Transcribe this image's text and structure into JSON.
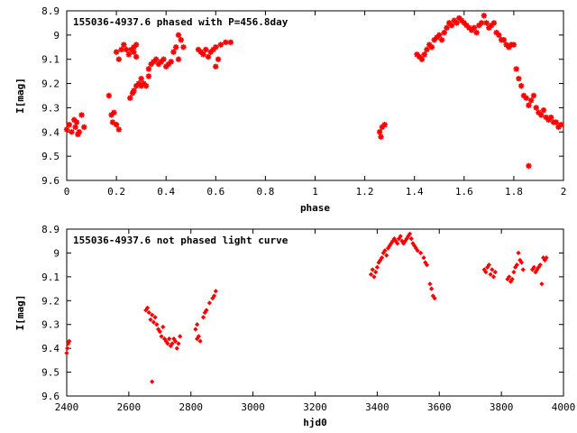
{
  "chart_data": [
    {
      "type": "scatter",
      "title": "155036-4937.6 phased with P=456.8day",
      "xlabel": "phase",
      "ylabel": "I[mag]",
      "xlim": [
        0,
        2
      ],
      "ylim": [
        8.9,
        9.6
      ],
      "y_inverted": true,
      "grid": false,
      "marker": "star",
      "color": "#ff0000",
      "x_ticks": [
        "0",
        "0.2",
        "0.4",
        "0.6",
        "0.8",
        "1",
        "1.2",
        "1.4",
        "1.6",
        "1.8",
        "2"
      ],
      "y_ticks": [
        "8.9",
        "9",
        "9.1",
        "9.2",
        "9.3",
        "9.4",
        "9.5",
        "9.6"
      ],
      "points": [
        [
          0.0,
          9.39
        ],
        [
          0.01,
          9.37
        ],
        [
          0.02,
          9.4
        ],
        [
          0.03,
          9.35
        ],
        [
          0.035,
          9.38
        ],
        [
          0.04,
          9.36
        ],
        [
          0.045,
          9.41
        ],
        [
          0.05,
          9.4
        ],
        [
          0.06,
          9.33
        ],
        [
          0.07,
          9.38
        ],
        [
          0.17,
          9.25
        ],
        [
          0.18,
          9.33
        ],
        [
          0.185,
          9.36
        ],
        [
          0.19,
          9.32
        ],
        [
          0.2,
          9.37
        ],
        [
          0.21,
          9.39
        ],
        [
          0.2,
          9.07
        ],
        [
          0.21,
          9.1
        ],
        [
          0.22,
          9.06
        ],
        [
          0.23,
          9.04
        ],
        [
          0.24,
          9.06
        ],
        [
          0.25,
          9.08
        ],
        [
          0.26,
          9.06
        ],
        [
          0.27,
          9.07
        ],
        [
          0.28,
          9.09
        ],
        [
          0.27,
          9.05
        ],
        [
          0.28,
          9.04
        ],
        [
          0.255,
          9.26
        ],
        [
          0.265,
          9.24
        ],
        [
          0.27,
          9.23
        ],
        [
          0.28,
          9.21
        ],
        [
          0.29,
          9.2
        ],
        [
          0.3,
          9.18
        ],
        [
          0.3,
          9.21
        ],
        [
          0.31,
          9.2
        ],
        [
          0.32,
          9.21
        ],
        [
          0.33,
          9.17
        ],
        [
          0.33,
          9.14
        ],
        [
          0.34,
          9.12
        ],
        [
          0.35,
          9.11
        ],
        [
          0.36,
          9.1
        ],
        [
          0.37,
          9.12
        ],
        [
          0.38,
          9.11
        ],
        [
          0.39,
          9.1
        ],
        [
          0.4,
          9.13
        ],
        [
          0.41,
          9.12
        ],
        [
          0.42,
          9.11
        ],
        [
          0.43,
          9.07
        ],
        [
          0.44,
          9.05
        ],
        [
          0.45,
          9.0
        ],
        [
          0.46,
          9.02
        ],
        [
          0.47,
          9.05
        ],
        [
          0.45,
          9.1
        ],
        [
          0.53,
          9.06
        ],
        [
          0.54,
          9.07
        ],
        [
          0.55,
          9.08
        ],
        [
          0.56,
          9.06
        ],
        [
          0.57,
          9.09
        ],
        [
          0.58,
          9.07
        ],
        [
          0.59,
          9.06
        ],
        [
          0.6,
          9.05
        ],
        [
          0.61,
          9.1
        ],
        [
          0.6,
          9.13
        ],
        [
          0.62,
          9.04
        ],
        [
          0.64,
          9.03
        ],
        [
          0.66,
          9.03
        ],
        [
          1.26,
          9.4
        ],
        [
          1.265,
          9.42
        ],
        [
          1.27,
          9.38
        ],
        [
          1.28,
          9.37
        ],
        [
          1.41,
          9.08
        ],
        [
          1.42,
          9.09
        ],
        [
          1.43,
          9.1
        ],
        [
          1.44,
          9.08
        ],
        [
          1.45,
          9.06
        ],
        [
          1.46,
          9.04
        ],
        [
          1.47,
          9.05
        ],
        [
          1.48,
          9.02
        ],
        [
          1.49,
          9.01
        ],
        [
          1.5,
          9.0
        ],
        [
          1.51,
          9.02
        ],
        [
          1.52,
          8.99
        ],
        [
          1.53,
          8.97
        ],
        [
          1.54,
          8.95
        ],
        [
          1.55,
          8.96
        ],
        [
          1.56,
          8.94
        ],
        [
          1.57,
          8.95
        ],
        [
          1.58,
          8.93
        ],
        [
          1.59,
          8.94
        ],
        [
          1.6,
          8.95
        ],
        [
          1.61,
          8.96
        ],
        [
          1.62,
          8.97
        ],
        [
          1.63,
          8.98
        ],
        [
          1.64,
          8.97
        ],
        [
          1.65,
          8.99
        ],
        [
          1.66,
          8.96
        ],
        [
          1.67,
          8.95
        ],
        [
          1.68,
          8.92
        ],
        [
          1.69,
          8.95
        ],
        [
          1.7,
          8.97
        ],
        [
          1.71,
          8.96
        ],
        [
          1.72,
          8.95
        ],
        [
          1.73,
          8.99
        ],
        [
          1.74,
          9.0
        ],
        [
          1.75,
          9.02
        ],
        [
          1.76,
          9.02
        ],
        [
          1.77,
          9.04
        ],
        [
          1.78,
          9.05
        ],
        [
          1.79,
          9.04
        ],
        [
          1.8,
          9.04
        ],
        [
          1.81,
          9.14
        ],
        [
          1.82,
          9.18
        ],
        [
          1.83,
          9.21
        ],
        [
          1.84,
          9.25
        ],
        [
          1.85,
          9.26
        ],
        [
          1.86,
          9.29
        ],
        [
          1.87,
          9.27
        ],
        [
          1.88,
          9.25
        ],
        [
          1.89,
          9.3
        ],
        [
          1.9,
          9.32
        ],
        [
          1.91,
          9.33
        ],
        [
          1.92,
          9.31
        ],
        [
          1.93,
          9.34
        ],
        [
          1.94,
          9.35
        ],
        [
          1.95,
          9.34
        ],
        [
          1.96,
          9.36
        ],
        [
          1.97,
          9.36
        ],
        [
          1.98,
          9.38
        ],
        [
          1.99,
          9.37
        ],
        [
          1.86,
          9.54
        ]
      ]
    },
    {
      "type": "scatter",
      "title": "155036-4937.6 not phased light curve",
      "xlabel": "hjd0",
      "ylabel": "I[mag]",
      "xlim": [
        2400,
        4000
      ],
      "ylim": [
        8.9,
        9.6
      ],
      "y_inverted": true,
      "grid": false,
      "marker": "diamond",
      "color": "#ff0000",
      "x_ticks": [
        "2400",
        "2600",
        "2800",
        "3000",
        "3200",
        "3400",
        "3600",
        "3800",
        "4000"
      ],
      "y_ticks": [
        "8.9",
        "9",
        "9.1",
        "9.2",
        "9.3",
        "9.4",
        "9.5",
        "9.6"
      ],
      "points": [
        [
          2400,
          9.42
        ],
        [
          2402,
          9.4
        ],
        [
          2405,
          9.38
        ],
        [
          2408,
          9.37
        ],
        [
          2655,
          9.24
        ],
        [
          2660,
          9.23
        ],
        [
          2665,
          9.25
        ],
        [
          2670,
          9.28
        ],
        [
          2675,
          9.26
        ],
        [
          2680,
          9.29
        ],
        [
          2685,
          9.27
        ],
        [
          2690,
          9.3
        ],
        [
          2695,
          9.32
        ],
        [
          2700,
          9.33
        ],
        [
          2705,
          9.35
        ],
        [
          2710,
          9.31
        ],
        [
          2715,
          9.36
        ],
        [
          2720,
          9.37
        ],
        [
          2725,
          9.38
        ],
        [
          2730,
          9.36
        ],
        [
          2735,
          9.39
        ],
        [
          2740,
          9.38
        ],
        [
          2745,
          9.36
        ],
        [
          2750,
          9.37
        ],
        [
          2755,
          9.4
        ],
        [
          2760,
          9.38
        ],
        [
          2765,
          9.35
        ],
        [
          2675,
          9.54
        ],
        [
          2820,
          9.36
        ],
        [
          2825,
          9.35
        ],
        [
          2830,
          9.37
        ],
        [
          2815,
          9.32
        ],
        [
          2820,
          9.3
        ],
        [
          2840,
          9.27
        ],
        [
          2845,
          9.25
        ],
        [
          2850,
          9.24
        ],
        [
          2860,
          9.21
        ],
        [
          2870,
          9.19
        ],
        [
          2875,
          9.18
        ],
        [
          2880,
          9.16
        ],
        [
          3380,
          9.09
        ],
        [
          3385,
          9.07
        ],
        [
          3390,
          9.1
        ],
        [
          3395,
          9.08
        ],
        [
          3400,
          9.06
        ],
        [
          3405,
          9.04
        ],
        [
          3410,
          9.03
        ],
        [
          3415,
          9.02
        ],
        [
          3420,
          9.0
        ],
        [
          3425,
          8.99
        ],
        [
          3430,
          9.01
        ],
        [
          3435,
          8.98
        ],
        [
          3440,
          8.97
        ],
        [
          3445,
          8.96
        ],
        [
          3450,
          8.95
        ],
        [
          3455,
          8.94
        ],
        [
          3460,
          8.95
        ],
        [
          3465,
          8.96
        ],
        [
          3470,
          8.94
        ],
        [
          3475,
          8.93
        ],
        [
          3480,
          8.95
        ],
        [
          3485,
          8.96
        ],
        [
          3490,
          8.95
        ],
        [
          3495,
          8.94
        ],
        [
          3500,
          8.93
        ],
        [
          3505,
          8.92
        ],
        [
          3510,
          8.94
        ],
        [
          3515,
          8.96
        ],
        [
          3520,
          8.97
        ],
        [
          3525,
          8.98
        ],
        [
          3530,
          8.99
        ],
        [
          3540,
          9.0
        ],
        [
          3550,
          9.02
        ],
        [
          3555,
          9.04
        ],
        [
          3560,
          9.05
        ],
        [
          3570,
          9.13
        ],
        [
          3575,
          9.15
        ],
        [
          3580,
          9.18
        ],
        [
          3585,
          9.19
        ],
        [
          3745,
          9.07
        ],
        [
          3750,
          9.08
        ],
        [
          3755,
          9.06
        ],
        [
          3760,
          9.05
        ],
        [
          3765,
          9.09
        ],
        [
          3770,
          9.07
        ],
        [
          3775,
          9.1
        ],
        [
          3780,
          9.08
        ],
        [
          3820,
          9.11
        ],
        [
          3825,
          9.1
        ],
        [
          3830,
          9.12
        ],
        [
          3835,
          9.11
        ],
        [
          3840,
          9.08
        ],
        [
          3845,
          9.06
        ],
        [
          3850,
          9.05
        ],
        [
          3855,
          9.0
        ],
        [
          3860,
          9.03
        ],
        [
          3865,
          9.04
        ],
        [
          3870,
          9.07
        ],
        [
          3900,
          9.07
        ],
        [
          3905,
          9.06
        ],
        [
          3910,
          9.08
        ],
        [
          3915,
          9.07
        ],
        [
          3920,
          9.06
        ],
        [
          3925,
          9.05
        ],
        [
          3930,
          9.13
        ],
        [
          3935,
          9.02
        ],
        [
          3940,
          9.03
        ],
        [
          3945,
          9.02
        ]
      ]
    }
  ]
}
